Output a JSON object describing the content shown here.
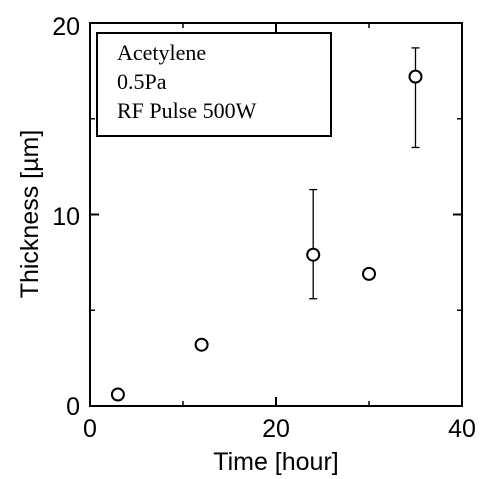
{
  "chart_data": {
    "type": "scatter",
    "xlabel": "Time [hour]",
    "ylabel": "Thickness [µm]",
    "xlim": [
      0,
      40
    ],
    "ylim": [
      0,
      20
    ],
    "x_ticks": [
      "0",
      "20",
      "40"
    ],
    "y_ticks": [
      "0",
      "10",
      "20"
    ],
    "grid": false,
    "annotation_lines": [
      "Acetylene",
      "0.5Pa",
      "RF Pulse 500W"
    ],
    "annotation_position": "top-left",
    "series": [
      {
        "marker": "open-circle",
        "points": [
          {
            "x": 3,
            "y": 0.6,
            "err_low": 0.4,
            "err_high": 0.8
          },
          {
            "x": 12,
            "y": 3.2,
            "err_low": 3.0,
            "err_high": 3.4
          },
          {
            "x": 24,
            "y": 7.9,
            "err_low": 5.6,
            "err_high": 11.3
          },
          {
            "x": 30,
            "y": 6.9,
            "err_low": 6.7,
            "err_high": 7.1
          },
          {
            "x": 35,
            "y": 17.2,
            "err_low": 13.5,
            "err_high": 18.7
          }
        ]
      }
    ]
  }
}
